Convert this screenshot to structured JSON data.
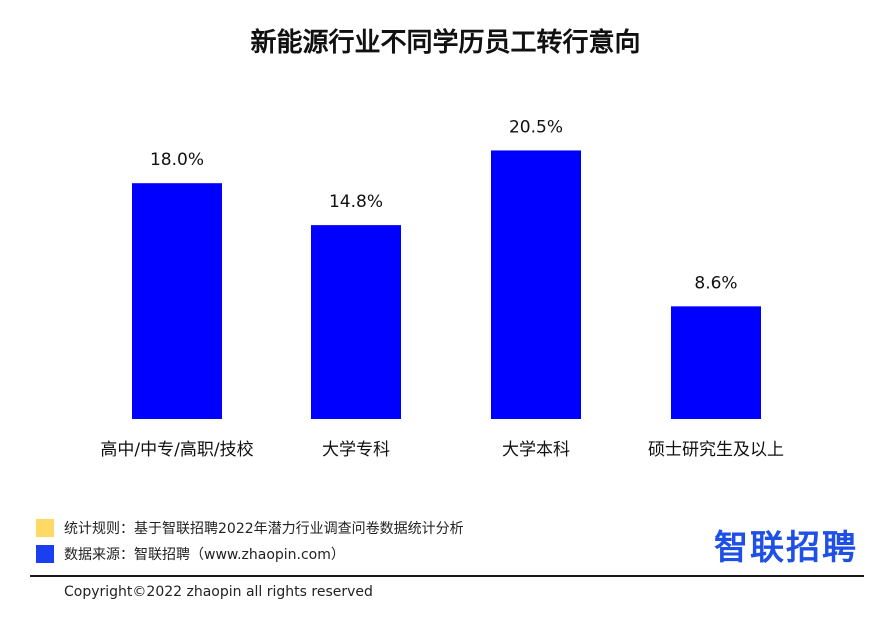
{
  "chart_data": {
    "type": "bar",
    "title": "新能源行业不同学历员工转行意向",
    "categories": [
      "高中/中专/高职/技校",
      "大学专科",
      "大学本科",
      "硕士研究生及以上"
    ],
    "values": [
      18.0,
      14.8,
      20.5,
      8.6
    ],
    "data_labels": [
      "18.0%",
      "14.8%",
      "20.5%",
      "8.6%"
    ],
    "ylim": [
      0,
      25
    ],
    "bar_color": "#0000ff",
    "grid": false,
    "legend": "none"
  },
  "footer": {
    "rule_text": "统计规则：基于智联招聘2022年潜力行业调查问卷数据统计分析",
    "rule_color": "#ffd966",
    "source_text": "数据来源：智联招聘（www.zhaopin.com）",
    "source_color": "#1a3ff0",
    "logo_text": "智联招聘",
    "copyright": "Copyright©2022 zhaopin all rights reserved"
  }
}
